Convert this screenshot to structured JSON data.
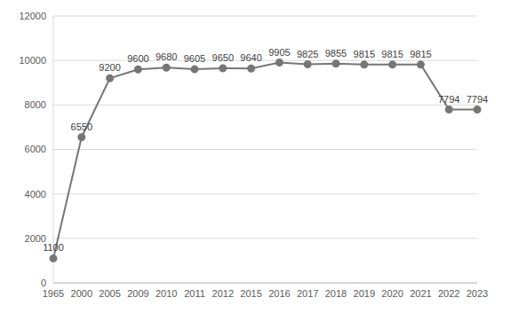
{
  "chart_data": {
    "type": "line",
    "categories": [
      "1965",
      "2000",
      "2005",
      "2009",
      "2010",
      "2011",
      "2012",
      "2015",
      "2016",
      "2017",
      "2018",
      "2019",
      "2020",
      "2021",
      "2022",
      "2023"
    ],
    "values": [
      1100,
      6550,
      9200,
      9600,
      9680,
      9605,
      9650,
      9640,
      9905,
      9825,
      9855,
      9815,
      9815,
      9815,
      7794,
      7794
    ],
    "color": "#767676",
    "marker": "circle",
    "ylim": [
      0,
      12000
    ],
    "yticks": [
      0,
      2000,
      4000,
      6000,
      8000,
      10000,
      12000
    ],
    "grid": true,
    "data_labels": true
  }
}
